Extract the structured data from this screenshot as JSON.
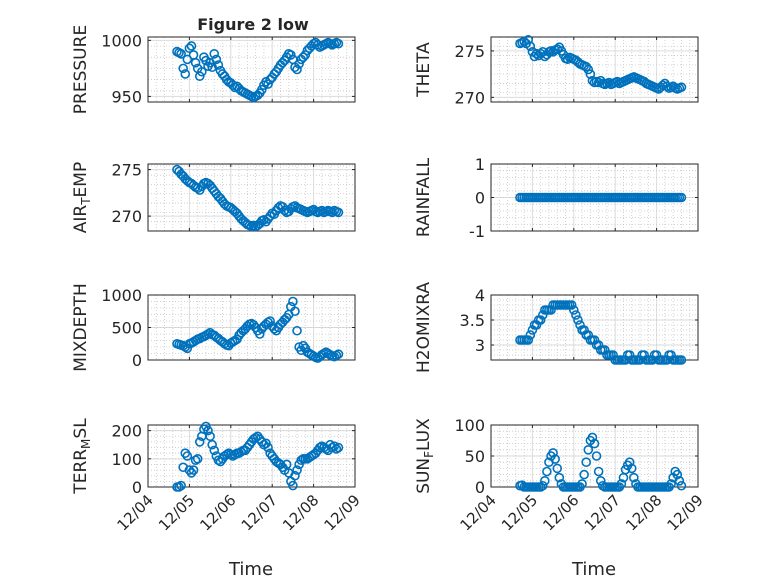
{
  "figure": {
    "title": "Figure 2 low",
    "background": "#ffffff",
    "marker_color": "#0072BD",
    "x_tick_labels": [
      "12/04",
      "12/05",
      "12/06",
      "12/07",
      "12/08",
      "12/09"
    ],
    "xlabel": "Time"
  },
  "chart_data": [
    {
      "type": "scatter",
      "ylabel": "PRESSURE",
      "ylim": [
        945,
        1003
      ],
      "yticks": [
        950,
        1000
      ],
      "xlim": [
        0,
        5
      ],
      "grid": true,
      "x": [
        0.7,
        0.75,
        0.8,
        0.85,
        0.9,
        0.95,
        1.0,
        1.05,
        1.1,
        1.15,
        1.2,
        1.25,
        1.3,
        1.35,
        1.4,
        1.45,
        1.5,
        1.55,
        1.6,
        1.65,
        1.7,
        1.75,
        1.8,
        1.85,
        1.9,
        1.95,
        2.0,
        2.05,
        2.1,
        2.15,
        2.2,
        2.25,
        2.3,
        2.35,
        2.4,
        2.45,
        2.5,
        2.55,
        2.6,
        2.65,
        2.7,
        2.75,
        2.8,
        2.85,
        2.9,
        2.95,
        3.0,
        3.05,
        3.1,
        3.15,
        3.2,
        3.25,
        3.3,
        3.35,
        3.4,
        3.45,
        3.5,
        3.55,
        3.6,
        3.65,
        3.7,
        3.75,
        3.8,
        3.85,
        3.9,
        3.95,
        4.0,
        4.05,
        4.1,
        4.15,
        4.2,
        4.25,
        4.3,
        4.35,
        4.4,
        4.45,
        4.5,
        4.55,
        4.6
      ],
      "y": [
        990,
        989,
        988,
        975,
        970,
        983,
        993,
        995,
        987,
        980,
        975,
        968,
        972,
        985,
        982,
        977,
        980,
        976,
        988,
        983,
        978,
        973,
        970,
        968,
        965,
        963,
        962,
        960,
        958,
        959,
        957,
        955,
        954,
        953,
        952,
        951,
        950,
        949,
        950,
        951,
        953,
        956,
        960,
        963,
        961,
        965,
        967,
        970,
        972,
        975,
        978,
        980,
        982,
        985,
        988,
        987,
        983,
        976,
        974,
        979,
        983,
        985,
        987,
        991,
        993,
        995,
        997,
        998,
        996,
        994,
        995,
        996,
        997,
        998,
        997,
        996,
        997,
        998,
        997
      ]
    },
    {
      "type": "scatter",
      "ylabel": "THETA",
      "ylim": [
        269.5,
        276.5
      ],
      "yticks": [
        270,
        275
      ],
      "xlim": [
        0,
        5
      ],
      "grid": true,
      "x": [
        0.7,
        0.75,
        0.8,
        0.85,
        0.9,
        0.95,
        1.0,
        1.05,
        1.1,
        1.15,
        1.2,
        1.25,
        1.3,
        1.35,
        1.4,
        1.45,
        1.5,
        1.55,
        1.6,
        1.65,
        1.7,
        1.75,
        1.8,
        1.85,
        1.9,
        1.95,
        2.0,
        2.05,
        2.1,
        2.15,
        2.2,
        2.25,
        2.3,
        2.35,
        2.4,
        2.45,
        2.5,
        2.55,
        2.6,
        2.65,
        2.7,
        2.75,
        2.8,
        2.85,
        2.9,
        2.95,
        3.0,
        3.05,
        3.1,
        3.15,
        3.2,
        3.25,
        3.3,
        3.35,
        3.4,
        3.45,
        3.5,
        3.55,
        3.6,
        3.65,
        3.7,
        3.75,
        3.8,
        3.85,
        3.9,
        3.95,
        4.0,
        4.05,
        4.1,
        4.15,
        4.2,
        4.25,
        4.3,
        4.35,
        4.4,
        4.45,
        4.5,
        4.55,
        4.6
      ],
      "y": [
        275.8,
        275.9,
        276.0,
        275.8,
        276.2,
        275.5,
        274.9,
        274.4,
        274.7,
        274.5,
        274.7,
        274.9,
        274.4,
        274.6,
        274.9,
        275.0,
        274.9,
        275.1,
        275.2,
        275.4,
        275.0,
        274.6,
        274.2,
        274.1,
        274.3,
        274.2,
        274.1,
        274.0,
        273.8,
        273.6,
        273.5,
        273.4,
        273.3,
        273.0,
        272.5,
        271.8,
        271.6,
        271.7,
        271.6,
        271.8,
        271.5,
        271.4,
        271.5,
        271.6,
        271.4,
        271.5,
        271.6,
        271.7,
        271.5,
        271.6,
        271.7,
        271.8,
        271.9,
        272.0,
        272.1,
        272.2,
        272.1,
        272.0,
        271.9,
        271.8,
        271.7,
        271.5,
        271.4,
        271.3,
        271.2,
        271.1,
        271.0,
        270.9,
        271.1,
        271.3,
        271.5,
        271.2,
        271.0,
        271.1,
        271.2,
        271.0,
        270.9,
        271.0,
        271.1
      ]
    },
    {
      "type": "scatter",
      "ylabel": "AIR_TEMP",
      "ylim": [
        268.4,
        275.6
      ],
      "yticks": [
        270,
        275
      ],
      "xlim": [
        0,
        5
      ],
      "grid": true,
      "x": [
        0.7,
        0.75,
        0.8,
        0.85,
        0.9,
        0.95,
        1.0,
        1.05,
        1.1,
        1.15,
        1.2,
        1.25,
        1.3,
        1.35,
        1.4,
        1.45,
        1.5,
        1.55,
        1.6,
        1.65,
        1.7,
        1.75,
        1.8,
        1.85,
        1.9,
        1.95,
        2.0,
        2.05,
        2.1,
        2.15,
        2.2,
        2.25,
        2.3,
        2.35,
        2.4,
        2.45,
        2.5,
        2.55,
        2.6,
        2.65,
        2.7,
        2.75,
        2.8,
        2.85,
        2.9,
        2.95,
        3.0,
        3.05,
        3.1,
        3.15,
        3.2,
        3.25,
        3.3,
        3.35,
        3.4,
        3.45,
        3.5,
        3.55,
        3.6,
        3.65,
        3.7,
        3.75,
        3.8,
        3.85,
        3.9,
        3.95,
        4.0,
        4.05,
        4.1,
        4.15,
        4.2,
        4.25,
        4.3,
        4.35,
        4.4,
        4.45,
        4.5,
        4.55,
        4.6
      ],
      "y": [
        275.0,
        274.8,
        274.5,
        274.3,
        274.0,
        273.8,
        273.6,
        273.5,
        273.3,
        273.1,
        273.0,
        272.8,
        273.2,
        273.5,
        273.6,
        273.5,
        273.3,
        273.0,
        272.7,
        272.4,
        272.1,
        271.9,
        271.6,
        271.3,
        271.1,
        271.0,
        270.9,
        270.7,
        270.5,
        270.3,
        270.0,
        269.7,
        269.5,
        269.3,
        269.1,
        269.0,
        268.9,
        269.0,
        268.9,
        269.0,
        269.2,
        269.5,
        269.6,
        269.4,
        269.7,
        270.0,
        270.3,
        270.2,
        270.6,
        270.9,
        271.1,
        271.0,
        270.6,
        270.4,
        270.5,
        270.8,
        271.0,
        271.1,
        270.9,
        270.8,
        270.7,
        270.6,
        270.5,
        270.4,
        270.5,
        270.6,
        270.7,
        270.5,
        270.4,
        270.5,
        270.6,
        270.4,
        270.5,
        270.6,
        270.5,
        270.4,
        270.6,
        270.5,
        270.4
      ]
    },
    {
      "type": "scatter",
      "ylabel": "RAINFALL",
      "ylim": [
        -1,
        1
      ],
      "yticks": [
        -1,
        0,
        1
      ],
      "xlim": [
        0,
        5
      ],
      "grid": true,
      "x": [
        0.7,
        0.75,
        0.8,
        0.85,
        0.9,
        0.95,
        1.0,
        1.05,
        1.1,
        1.15,
        1.2,
        1.25,
        1.3,
        1.35,
        1.4,
        1.45,
        1.5,
        1.55,
        1.6,
        1.65,
        1.7,
        1.75,
        1.8,
        1.85,
        1.9,
        1.95,
        2.0,
        2.05,
        2.1,
        2.15,
        2.2,
        2.25,
        2.3,
        2.35,
        2.4,
        2.45,
        2.5,
        2.55,
        2.6,
        2.65,
        2.7,
        2.75,
        2.8,
        2.85,
        2.9,
        2.95,
        3.0,
        3.05,
        3.1,
        3.15,
        3.2,
        3.25,
        3.3,
        3.35,
        3.4,
        3.45,
        3.5,
        3.55,
        3.6,
        3.65,
        3.7,
        3.75,
        3.8,
        3.85,
        3.9,
        3.95,
        4.0,
        4.05,
        4.1,
        4.15,
        4.2,
        4.25,
        4.3,
        4.35,
        4.4,
        4.45,
        4.5,
        4.55,
        4.6
      ],
      "y": [
        0,
        0,
        0,
        0,
        0,
        0,
        0,
        0,
        0,
        0,
        0,
        0,
        0,
        0,
        0,
        0,
        0,
        0,
        0,
        0,
        0,
        0,
        0,
        0,
        0,
        0,
        0,
        0,
        0,
        0,
        0,
        0,
        0,
        0,
        0,
        0,
        0,
        0,
        0,
        0,
        0,
        0,
        0,
        0,
        0,
        0,
        0,
        0,
        0,
        0,
        0,
        0,
        0,
        0,
        0,
        0,
        0,
        0,
        0,
        0,
        0,
        0,
        0,
        0,
        0,
        0,
        0,
        0,
        0,
        0,
        0,
        0,
        0,
        0,
        0,
        0,
        0,
        0,
        0
      ]
    },
    {
      "type": "scatter",
      "ylabel": "MIXDEPTH",
      "ylim": [
        0,
        1000
      ],
      "yticks": [
        0,
        500,
        1000
      ],
      "xlim": [
        0,
        5
      ],
      "grid": true,
      "x": [
        0.7,
        0.75,
        0.8,
        0.85,
        0.9,
        0.95,
        1.0,
        1.05,
        1.1,
        1.15,
        1.2,
        1.25,
        1.3,
        1.35,
        1.4,
        1.45,
        1.5,
        1.55,
        1.6,
        1.65,
        1.7,
        1.75,
        1.8,
        1.85,
        1.9,
        1.95,
        2.0,
        2.05,
        2.1,
        2.15,
        2.2,
        2.25,
        2.3,
        2.35,
        2.4,
        2.45,
        2.5,
        2.55,
        2.6,
        2.65,
        2.7,
        2.75,
        2.8,
        2.85,
        2.9,
        2.95,
        3.0,
        3.05,
        3.1,
        3.15,
        3.2,
        3.25,
        3.3,
        3.35,
        3.4,
        3.45,
        3.5,
        3.55,
        3.6,
        3.65,
        3.7,
        3.75,
        3.8,
        3.85,
        3.9,
        3.95,
        4.0,
        4.05,
        4.1,
        4.15,
        4.2,
        4.25,
        4.3,
        4.35,
        4.4,
        4.45,
        4.5,
        4.55,
        4.6
      ],
      "y": [
        250,
        240,
        230,
        220,
        200,
        180,
        250,
        260,
        280,
        300,
        320,
        330,
        350,
        360,
        380,
        400,
        420,
        390,
        380,
        350,
        330,
        300,
        280,
        250,
        230,
        220,
        260,
        280,
        300,
        320,
        380,
        420,
        450,
        480,
        520,
        550,
        560,
        540,
        500,
        450,
        400,
        480,
        520,
        550,
        580,
        600,
        520,
        480,
        450,
        500,
        550,
        580,
        620,
        650,
        700,
        820,
        900,
        750,
        450,
        200,
        150,
        220,
        180,
        120,
        100,
        80,
        60,
        40,
        30,
        50,
        80,
        100,
        120,
        100,
        80,
        60,
        50,
        70,
        90
      ]
    },
    {
      "type": "scatter",
      "ylabel": "H2OMIXRA",
      "ylim": [
        2.7,
        4.0
      ],
      "yticks": [
        3,
        3.5,
        4
      ],
      "xlim": [
        0,
        5
      ],
      "grid": true,
      "x": [
        0.7,
        0.75,
        0.8,
        0.85,
        0.9,
        0.95,
        1.0,
        1.05,
        1.1,
        1.15,
        1.2,
        1.25,
        1.3,
        1.35,
        1.4,
        1.45,
        1.5,
        1.55,
        1.6,
        1.65,
        1.7,
        1.75,
        1.8,
        1.85,
        1.9,
        1.95,
        2.0,
        2.05,
        2.1,
        2.15,
        2.2,
        2.25,
        2.3,
        2.35,
        2.4,
        2.45,
        2.5,
        2.55,
        2.6,
        2.65,
        2.7,
        2.75,
        2.8,
        2.85,
        2.9,
        2.95,
        3.0,
        3.05,
        3.1,
        3.15,
        3.2,
        3.25,
        3.3,
        3.35,
        3.4,
        3.45,
        3.5,
        3.55,
        3.6,
        3.65,
        3.7,
        3.75,
        3.8,
        3.85,
        3.9,
        3.95,
        4.0,
        4.05,
        4.1,
        4.15,
        4.2,
        4.25,
        4.3,
        4.35,
        4.4,
        4.45,
        4.5,
        4.55,
        4.6
      ],
      "y": [
        3.1,
        3.1,
        3.1,
        3.1,
        3.1,
        3.2,
        3.3,
        3.4,
        3.4,
        3.5,
        3.5,
        3.6,
        3.7,
        3.7,
        3.7,
        3.7,
        3.8,
        3.8,
        3.8,
        3.8,
        3.8,
        3.8,
        3.8,
        3.8,
        3.8,
        3.8,
        3.7,
        3.6,
        3.5,
        3.4,
        3.3,
        3.3,
        3.2,
        3.2,
        3.1,
        3.1,
        3.1,
        3.0,
        3.0,
        2.9,
        2.9,
        2.9,
        2.8,
        2.8,
        2.8,
        2.8,
        2.7,
        2.7,
        2.7,
        2.7,
        2.7,
        2.7,
        2.8,
        2.8,
        2.7,
        2.7,
        2.7,
        2.7,
        2.7,
        2.8,
        2.8,
        2.7,
        2.7,
        2.7,
        2.7,
        2.8,
        2.8,
        2.7,
        2.7,
        2.7,
        2.7,
        2.7,
        2.8,
        2.8,
        2.7,
        2.7,
        2.7,
        2.7,
        2.7
      ]
    },
    {
      "type": "scatter",
      "ylabel": "TERR_MSL",
      "ylim": [
        0,
        220
      ],
      "yticks": [
        0,
        100,
        200
      ],
      "xlim": [
        0,
        5
      ],
      "grid": true,
      "x": [
        0.7,
        0.75,
        0.8,
        0.85,
        0.9,
        0.95,
        1.0,
        1.05,
        1.1,
        1.15,
        1.2,
        1.25,
        1.3,
        1.35,
        1.4,
        1.45,
        1.5,
        1.55,
        1.6,
        1.65,
        1.7,
        1.75,
        1.8,
        1.85,
        1.9,
        1.95,
        2.0,
        2.05,
        2.1,
        2.15,
        2.2,
        2.25,
        2.3,
        2.35,
        2.4,
        2.45,
        2.5,
        2.55,
        2.6,
        2.65,
        2.7,
        2.75,
        2.8,
        2.85,
        2.9,
        2.95,
        3.0,
        3.05,
        3.1,
        3.15,
        3.2,
        3.25,
        3.3,
        3.35,
        3.4,
        3.45,
        3.5,
        3.55,
        3.6,
        3.65,
        3.7,
        3.75,
        3.8,
        3.85,
        3.9,
        3.95,
        4.0,
        4.05,
        4.1,
        4.15,
        4.2,
        4.25,
        4.3,
        4.35,
        4.4,
        4.45,
        4.5,
        4.55,
        4.6
      ],
      "y": [
        0,
        0,
        5,
        70,
        120,
        110,
        60,
        50,
        60,
        95,
        100,
        160,
        180,
        205,
        215,
        200,
        180,
        150,
        130,
        110,
        95,
        90,
        100,
        110,
        115,
        120,
        115,
        110,
        115,
        120,
        120,
        125,
        130,
        130,
        140,
        150,
        160,
        170,
        175,
        180,
        170,
        160,
        150,
        155,
        140,
        120,
        110,
        100,
        90,
        85,
        80,
        70,
        60,
        80,
        50,
        20,
        5,
        40,
        60,
        80,
        95,
        100,
        100,
        100,
        105,
        110,
        115,
        120,
        130,
        140,
        145,
        140,
        135,
        130,
        150,
        140,
        145,
        135,
        140
      ]
    },
    {
      "type": "scatter",
      "ylabel": "SUN_FLUX",
      "ylim": [
        0,
        100
      ],
      "yticks": [
        0,
        50,
        100
      ],
      "xlim": [
        0,
        5
      ],
      "grid": true,
      "x": [
        0.7,
        0.75,
        0.8,
        0.85,
        0.9,
        0.95,
        1.0,
        1.05,
        1.1,
        1.15,
        1.2,
        1.25,
        1.3,
        1.35,
        1.4,
        1.45,
        1.5,
        1.55,
        1.6,
        1.65,
        1.7,
        1.75,
        1.8,
        1.85,
        1.9,
        1.95,
        2.0,
        2.05,
        2.1,
        2.15,
        2.2,
        2.25,
        2.3,
        2.35,
        2.4,
        2.45,
        2.5,
        2.55,
        2.6,
        2.65,
        2.7,
        2.75,
        2.8,
        2.85,
        2.9,
        2.95,
        3.0,
        3.05,
        3.1,
        3.15,
        3.2,
        3.25,
        3.3,
        3.35,
        3.4,
        3.45,
        3.5,
        3.55,
        3.6,
        3.65,
        3.7,
        3.75,
        3.8,
        3.85,
        3.9,
        3.95,
        4.0,
        4.05,
        4.1,
        4.15,
        4.2,
        4.25,
        4.3,
        4.35,
        4.4,
        4.45,
        4.5,
        4.55,
        4.6
      ],
      "y": [
        2,
        3,
        0,
        0,
        0,
        0,
        0,
        0,
        0,
        0,
        0,
        2,
        10,
        25,
        40,
        50,
        55,
        45,
        30,
        15,
        5,
        0,
        0,
        0,
        0,
        0,
        0,
        0,
        0,
        0,
        5,
        20,
        40,
        60,
        75,
        80,
        70,
        50,
        25,
        10,
        2,
        0,
        0,
        0,
        0,
        0,
        0,
        0,
        0,
        5,
        15,
        28,
        35,
        40,
        30,
        15,
        5,
        0,
        0,
        0,
        0,
        0,
        0,
        0,
        0,
        0,
        0,
        0,
        0,
        0,
        0,
        0,
        0,
        5,
        15,
        25,
        20,
        10,
        2
      ]
    }
  ]
}
